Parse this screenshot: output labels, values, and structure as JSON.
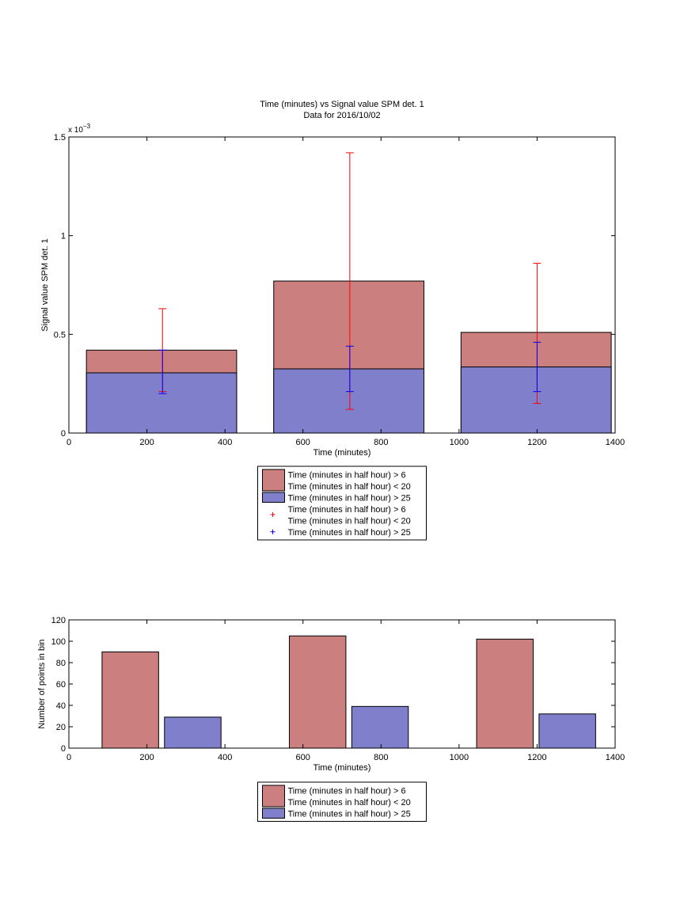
{
  "colors": {
    "red_fill": "#cc7f7f",
    "blue_fill": "#7f7fcc",
    "red_err": "#ff0000",
    "blue_err": "#0000ff",
    "edge": "#000000"
  },
  "chart_data": [
    {
      "type": "bar",
      "subtype": "overlaid bars with error bars",
      "title": "Time (minutes) vs Signal value SPM det. 1",
      "subtitle": "Data for 2016/10/02",
      "xlabel": "Time (minutes)",
      "ylabel": "Signal value SPM det. 1",
      "exponent_label": "x 10",
      "exponent_power": "−3",
      "xlim": [
        0,
        1400
      ],
      "ylim": [
        0,
        1.5
      ],
      "xticks": [
        "0",
        "200",
        "400",
        "600",
        "800",
        "1000",
        "1200",
        "1400"
      ],
      "yticks": [
        "0",
        "0.5",
        "1",
        "1.5"
      ],
      "bins": [
        {
          "x0": 45,
          "x1": 430
        },
        {
          "x0": 525,
          "x1": 910
        },
        {
          "x0": 1005,
          "x1": 1390
        }
      ],
      "series": [
        {
          "name": "Time (minutes in half hour) > 6 Time (minutes in half hour) < 20",
          "values": [
            0.42,
            0.77,
            0.51
          ],
          "error_x": [
            240,
            720,
            1200
          ],
          "error_lower": [
            0.21,
            0.12,
            0.15
          ],
          "error_upper": [
            0.63,
            1.42,
            0.86
          ]
        },
        {
          "name": "Time (minutes in half hour) > 25",
          "values": [
            0.305,
            0.325,
            0.335
          ],
          "error_x": [
            240,
            720,
            1200
          ],
          "error_lower": [
            0.2,
            0.21,
            0.21
          ],
          "error_upper": [
            0.42,
            0.44,
            0.46
          ]
        }
      ],
      "legend": {
        "placement": "below-axes",
        "entries": [
          {
            "kind": "patch",
            "color": "red",
            "lines": [
              "Time (minutes in half hour) > 6",
              "Time (minutes in half hour) < 20"
            ]
          },
          {
            "kind": "patch",
            "color": "blue",
            "lines": [
              "Time (minutes in half hour) > 25"
            ]
          },
          {
            "kind": "marker",
            "color": "red",
            "marker": "+",
            "lines": [
              "Time (minutes in half hour) > 6",
              "Time (minutes in half hour) < 20"
            ]
          },
          {
            "kind": "marker",
            "color": "blue",
            "marker": "+",
            "lines": [
              "Time (minutes in half hour) > 25"
            ]
          }
        ]
      }
    },
    {
      "type": "bar",
      "subtype": "grouped bars",
      "xlabel": "Time (minutes)",
      "ylabel": "Number of points in bin",
      "xlim": [
        0,
        1400
      ],
      "ylim": [
        0,
        120
      ],
      "xticks": [
        "0",
        "200",
        "400",
        "600",
        "800",
        "1000",
        "1200",
        "1400"
      ],
      "yticks": [
        "0",
        "20",
        "40",
        "60",
        "80",
        "100",
        "120"
      ],
      "series": [
        {
          "name": "Time (minutes in half hour) > 6 Time (minutes in half hour) < 20",
          "values": [
            90,
            105,
            102
          ],
          "bars": [
            {
              "x0": 85,
              "x1": 230
            },
            {
              "x0": 565,
              "x1": 710
            },
            {
              "x0": 1045,
              "x1": 1190
            }
          ]
        },
        {
          "name": "Time (minutes in half hour) > 25",
          "values": [
            29,
            39,
            32
          ],
          "bars": [
            {
              "x0": 245,
              "x1": 390
            },
            {
              "x0": 725,
              "x1": 870
            },
            {
              "x0": 1205,
              "x1": 1350
            }
          ]
        }
      ],
      "legend": {
        "placement": "below-axes",
        "entries": [
          {
            "kind": "patch",
            "color": "red",
            "lines": [
              "Time (minutes in half hour) > 6",
              "Time (minutes in half hour) < 20"
            ]
          },
          {
            "kind": "patch",
            "color": "blue",
            "lines": [
              "Time (minutes in half hour) > 25"
            ]
          }
        ]
      }
    }
  ]
}
